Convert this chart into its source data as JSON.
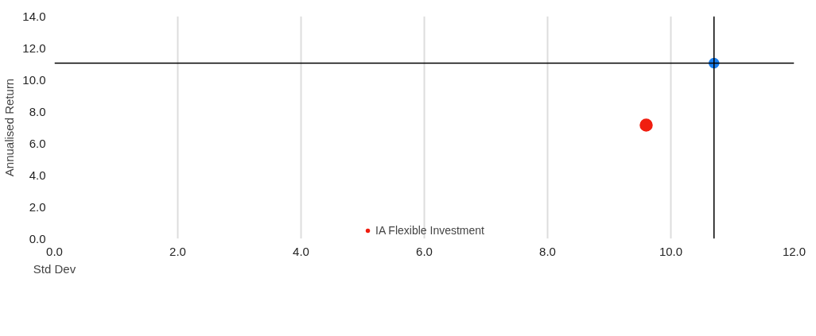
{
  "chart_data": {
    "type": "scatter",
    "xlabel": "Std Dev",
    "ylabel": "Annualised Return",
    "series": [
      {
        "color": "#1a7ff0",
        "x": [
          10.7
        ],
        "values": [
          11.05
        ]
      },
      {
        "name": "IA Flexible Investment",
        "color": "#f01e10",
        "x": [
          9.6
        ],
        "values": [
          7.15
        ]
      }
    ],
    "xlim": [
      0,
      12
    ],
    "ylim": [
      0,
      14
    ],
    "xticks": [
      {
        "value": 0,
        "label": "0.0"
      },
      {
        "value": 2,
        "label": "2.0"
      },
      {
        "value": 4,
        "label": "4.0"
      },
      {
        "value": 6,
        "label": "6.0"
      },
      {
        "value": 8,
        "label": "8.0"
      },
      {
        "value": 10,
        "label": "10.0"
      },
      {
        "value": 12,
        "label": "12.0"
      }
    ],
    "yticks": [
      {
        "value": 0,
        "label": "0.0"
      },
      {
        "value": 2,
        "label": "2.0"
      },
      {
        "value": 4,
        "label": "4.0"
      },
      {
        "value": 6,
        "label": "6.0"
      },
      {
        "value": 8,
        "label": "8.0"
      },
      {
        "value": 10,
        "label": "10.0"
      },
      {
        "value": 12,
        "label": "12.0"
      },
      {
        "value": 14,
        "label": "14.0"
      }
    ],
    "ref_lines": [
      {
        "axis": "y",
        "value": 11.05,
        "color": "#000000"
      },
      {
        "axis": "x",
        "value": 10.7,
        "color": "#000000"
      }
    ],
    "grid": "x",
    "legend": "bottom",
    "marker": "circle"
  }
}
